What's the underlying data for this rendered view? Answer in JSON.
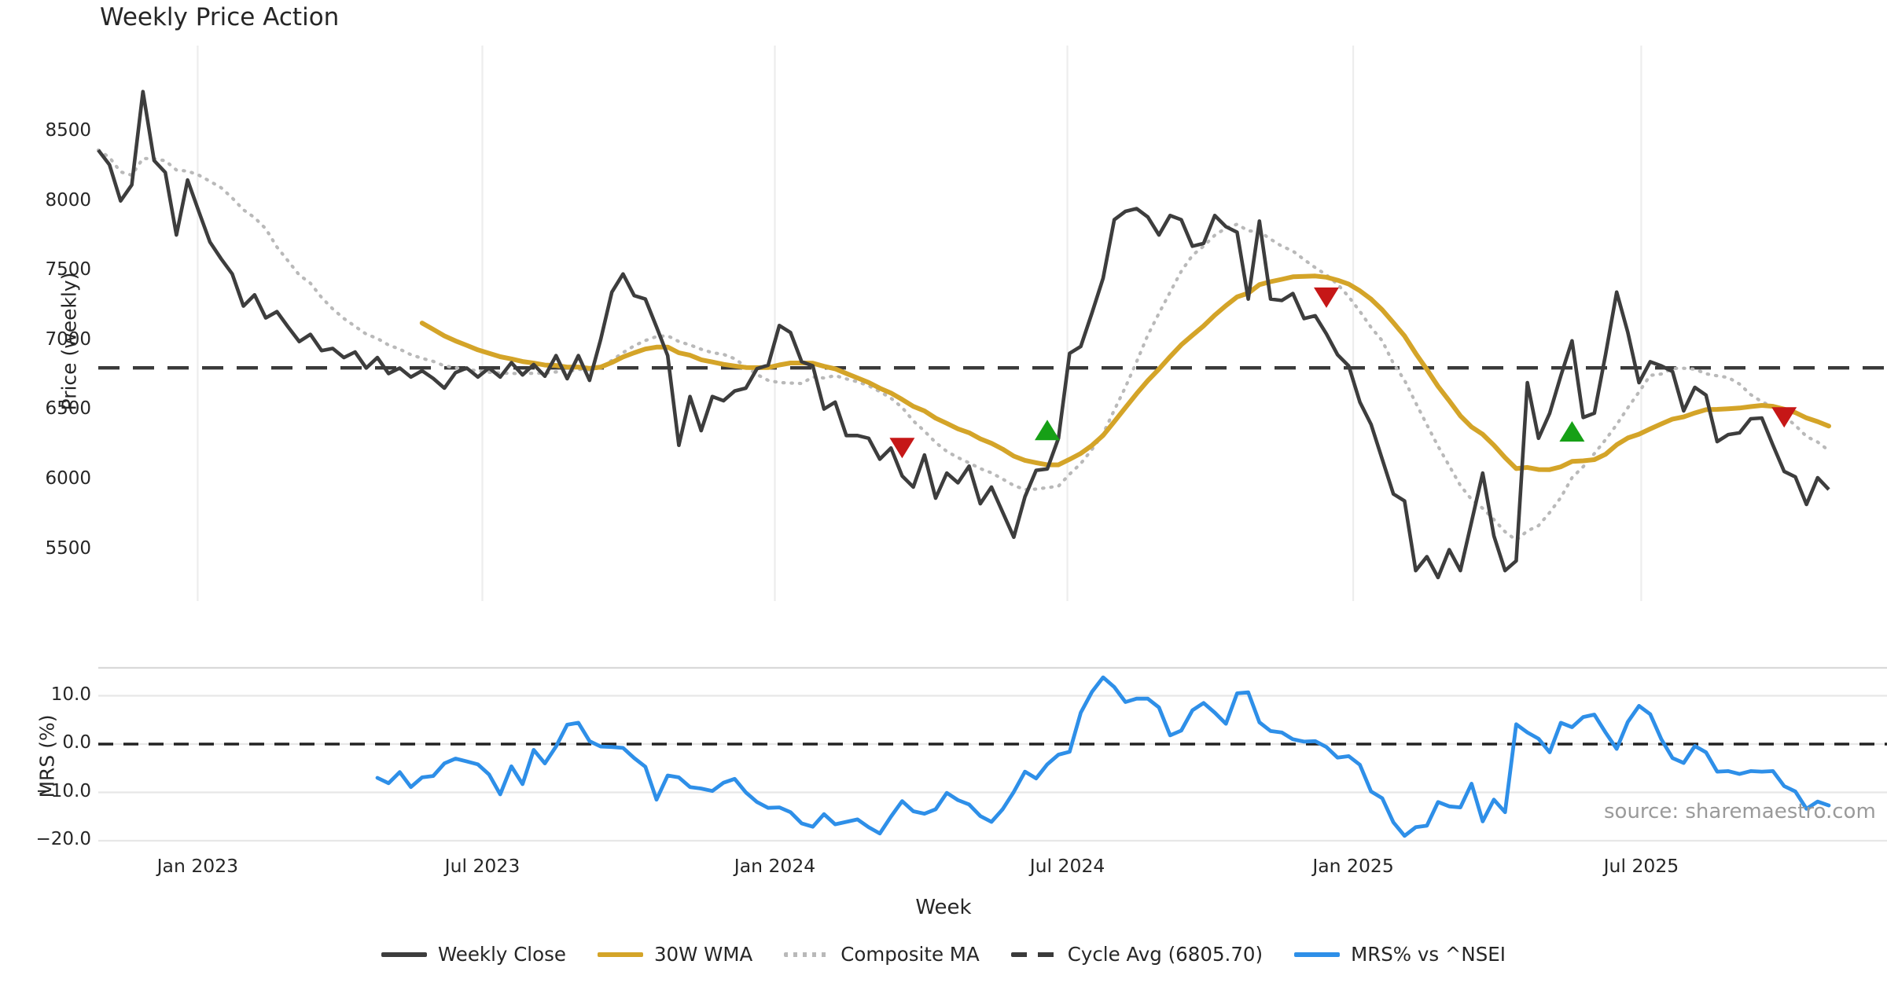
{
  "title": "Weekly Price Action",
  "source_note": "source: sharemaestro.com",
  "colors": {
    "close": "#3d3d3d",
    "wma": "#d4a428",
    "composite": "#b9b9b9",
    "cycle": "#3a3a3a",
    "mrs": "#2e8fe8",
    "buy_marker": "#16a016",
    "sell_marker": "#c61717",
    "grid": "#ededed",
    "mrs_grid": "#e7e7e7",
    "panel_border": "#d9d9d9",
    "source_text": "#9a9a9a"
  },
  "legend": {
    "items": [
      {
        "label": "Weekly Close",
        "style": "solid",
        "color": "#3d3d3d"
      },
      {
        "label": "30W WMA",
        "style": "solid",
        "color": "#d4a428"
      },
      {
        "label": "Composite MA",
        "style": "dotted",
        "color": "#b9b9b9"
      },
      {
        "label": "Cycle Avg (6805.70)",
        "style": "dashed",
        "color": "#3a3a3a"
      },
      {
        "label": "MRS% vs ^NSEI",
        "style": "solid",
        "color": "#2e8fe8"
      }
    ]
  },
  "chart_data": {
    "type": "line",
    "title": "Weekly Price Action",
    "xlabel": "Week",
    "panels": [
      {
        "name": "price",
        "ylabel": "Price (weekly)",
        "yticks": [
          5500,
          6000,
          6500,
          7000,
          7500,
          8000,
          8500
        ],
        "ylim": [
          5130,
          9120
        ],
        "grid": "vertical"
      },
      {
        "name": "mrs",
        "ylabel": "MRS (%)",
        "yticks": [
          10.0,
          0.0,
          -10.0,
          -20.0
        ],
        "ylim": [
          -22.5,
          15.5
        ],
        "grid": "horizontal"
      }
    ],
    "x_ticks": {
      "labels": [
        "Jan 2023",
        "Jul 2023",
        "Jan 2024",
        "Jul 2024",
        "Jan 2025",
        "Jul 2025"
      ],
      "weeks": [
        8.9,
        34.4,
        60.6,
        86.8,
        112.4,
        138.2
      ]
    },
    "cycle_avg": 6805.7,
    "series": [
      {
        "name": "Weekly Close",
        "panel": "price",
        "start_week": 0,
        "values": [
          8370,
          8265,
          8005,
          8120,
          8790,
          8295,
          8210,
          7760,
          8155,
          7930,
          7710,
          7590,
          7480,
          7250,
          7330,
          7165,
          7210,
          7100,
          6995,
          7046,
          6930,
          6945,
          6880,
          6920,
          6805,
          6880,
          6765,
          6805,
          6740,
          6785,
          6730,
          6660,
          6772,
          6805,
          6740,
          6805,
          6740,
          6843,
          6755,
          6830,
          6746,
          6894,
          6728,
          6894,
          6716,
          7010,
          7350,
          7480,
          7325,
          7300,
          7100,
          6894,
          6250,
          6600,
          6355,
          6600,
          6570,
          6640,
          6660,
          6800,
          6825,
          7110,
          7060,
          6850,
          6820,
          6510,
          6560,
          6320,
          6320,
          6300,
          6150,
          6230,
          6030,
          5950,
          6180,
          5870,
          6050,
          5980,
          6100,
          5830,
          5950,
          5770,
          5590,
          5880,
          6070,
          6080,
          6300,
          6910,
          6960,
          7200,
          7450,
          7870,
          7930,
          7950,
          7890,
          7760,
          7900,
          7870,
          7680,
          7700,
          7900,
          7820,
          7780,
          7300,
          7860,
          7300,
          7290,
          7340,
          7160,
          7180,
          7050,
          6900,
          6820,
          6560,
          6400,
          6150,
          5900,
          5850,
          5350,
          5450,
          5300,
          5500,
          5350,
          5700,
          6050,
          5600,
          5350,
          5420,
          6700,
          6300,
          6480,
          6750,
          7000,
          6450,
          6480,
          6900,
          7350,
          7060,
          6700,
          6850,
          6820,
          6780,
          6497,
          6666,
          6610,
          6276,
          6327,
          6339,
          6440,
          6446,
          6250,
          6062,
          6023,
          5825,
          6017,
          5932
        ]
      },
      {
        "name": "30W WMA",
        "panel": "price",
        "derived": "wma",
        "period": 30,
        "source": "Weekly Close"
      },
      {
        "name": "Composite MA",
        "panel": "price",
        "derived": "sma",
        "period": 12,
        "source": "Weekly Close"
      },
      {
        "name": "Cycle Avg (6805.70)",
        "panel": "price",
        "derived": "constant",
        "value": 6805.7
      },
      {
        "name": "MRS% vs ^NSEI",
        "panel": "mrs",
        "start_week": 25,
        "values": [
          -7.0,
          -8.1,
          -5.8,
          -8.9,
          -6.9,
          -6.6,
          -4.0,
          -3.0,
          -3.6,
          -4.2,
          -6.3,
          -10.4,
          -4.6,
          -8.3,
          -1.2,
          -4.0,
          -0.5,
          4.0,
          4.4,
          0.6,
          -0.5,
          -0.6,
          -0.8,
          -2.9,
          -4.7,
          -11.5,
          -6.5,
          -6.9,
          -8.9,
          -9.2,
          -9.7,
          -8.0,
          -7.2,
          -10.0,
          -12.0,
          -13.2,
          -13.1,
          -14.1,
          -16.4,
          -17.1,
          -14.5,
          -16.6,
          -16.1,
          -15.6,
          -17.2,
          -18.5,
          -15.0,
          -11.8,
          -13.9,
          -14.4,
          -13.5,
          -10.1,
          -11.6,
          -12.5,
          -14.9,
          -16.1,
          -13.5,
          -9.9,
          -5.7,
          -7.1,
          -4.2,
          -2.2,
          -1.6,
          6.5,
          10.8,
          13.8,
          11.8,
          8.7,
          9.4,
          9.4,
          7.6,
          1.8,
          2.8,
          7.0,
          8.5,
          6.5,
          4.2,
          10.5,
          10.7,
          4.5,
          2.7,
          2.4,
          1.0,
          0.5,
          0.6,
          -0.6,
          -2.8,
          -2.5,
          -4.3,
          -9.8,
          -11.2,
          -16.2,
          -19.0,
          -17.2,
          -16.9,
          -12.0,
          -12.9,
          -13.1,
          -8.2,
          -16.0,
          -11.5,
          -14.1,
          4.1,
          2.4,
          1.1,
          -1.7,
          4.4,
          3.5,
          5.6,
          6.1,
          2.4,
          -1.0,
          4.6,
          7.9,
          6.2,
          1.0,
          -2.9,
          -3.9,
          -0.4,
          -1.7,
          -5.7,
          -5.6,
          -6.2,
          -5.6,
          -5.7,
          -5.6,
          -8.7,
          -9.8,
          -13.4,
          -11.9,
          -12.7
        ]
      }
    ],
    "markers": {
      "buy": [
        {
          "week": 85,
          "value": 6360
        },
        {
          "week": 132,
          "value": 6350
        }
      ],
      "sell": [
        {
          "week": 72,
          "value": 6230
        },
        {
          "week": 110,
          "value": 7310
        },
        {
          "week": 151,
          "value": 6450
        }
      ]
    }
  }
}
